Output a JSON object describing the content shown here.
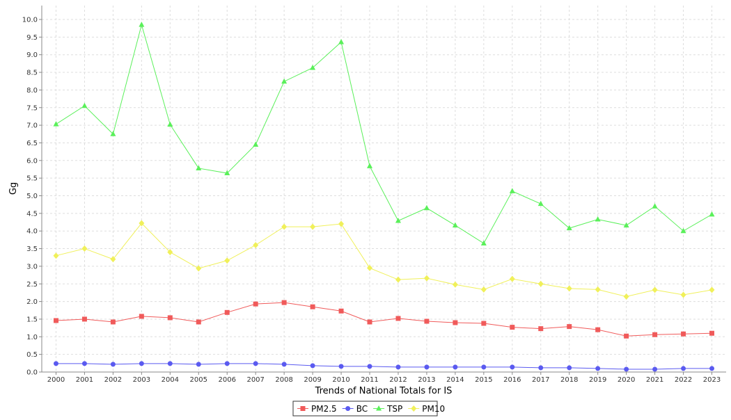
{
  "chart_data": {
    "type": "line",
    "title": "",
    "xlabel": "Trends of National Totals for IS",
    "ylabel": "Gg",
    "ylim": [
      0,
      10
    ],
    "yticks": [
      "0.0",
      "0.5",
      "1.0",
      "1.5",
      "2.0",
      "2.5",
      "3.0",
      "3.5",
      "4.0",
      "4.5",
      "5.0",
      "5.5",
      "6.0",
      "6.5",
      "7.0",
      "7.5",
      "8.0",
      "8.5",
      "9.0",
      "9.5",
      "10.0"
    ],
    "grid": true,
    "legend_position": "bottom-center",
    "categories": [
      "2000",
      "2001",
      "2002",
      "2003",
      "2004",
      "2005",
      "2006",
      "2007",
      "2008",
      "2009",
      "2010",
      "2011",
      "2012",
      "2013",
      "2014",
      "2015",
      "2016",
      "2017",
      "2018",
      "2019",
      "2020",
      "2021",
      "2022",
      "2023"
    ],
    "series": [
      {
        "name": "PM2.5",
        "color": "#f05a5a",
        "marker": "square",
        "values": [
          1.46,
          1.5,
          1.42,
          1.58,
          1.54,
          1.42,
          1.69,
          1.93,
          1.97,
          1.85,
          1.73,
          1.42,
          1.52,
          1.44,
          1.4,
          1.38,
          1.27,
          1.23,
          1.29,
          1.2,
          1.02,
          1.06,
          1.08,
          1.1
        ]
      },
      {
        "name": "BC",
        "color": "#5a5af0",
        "marker": "circle",
        "values": [
          0.24,
          0.24,
          0.22,
          0.24,
          0.24,
          0.22,
          0.24,
          0.24,
          0.22,
          0.18,
          0.16,
          0.16,
          0.14,
          0.14,
          0.14,
          0.14,
          0.14,
          0.12,
          0.12,
          0.1,
          0.08,
          0.08,
          0.1,
          0.1
        ]
      },
      {
        "name": "TSP",
        "color": "#5af05a",
        "marker": "triangle",
        "values": [
          7.03,
          7.55,
          6.75,
          9.85,
          7.02,
          5.78,
          5.64,
          6.45,
          8.24,
          8.63,
          9.36,
          5.84,
          4.29,
          4.65,
          4.16,
          3.65,
          5.13,
          4.77,
          4.08,
          4.33,
          4.16,
          4.7,
          4.0,
          4.47
        ]
      },
      {
        "name": "PM10",
        "color": "#f0f05a",
        "marker": "diamond",
        "values": [
          3.3,
          3.5,
          3.2,
          4.22,
          3.4,
          2.94,
          3.16,
          3.6,
          4.12,
          4.12,
          4.2,
          2.95,
          2.62,
          2.66,
          2.48,
          2.34,
          2.64,
          2.5,
          2.37,
          2.34,
          2.14,
          2.33,
          2.19,
          2.33
        ]
      }
    ]
  }
}
